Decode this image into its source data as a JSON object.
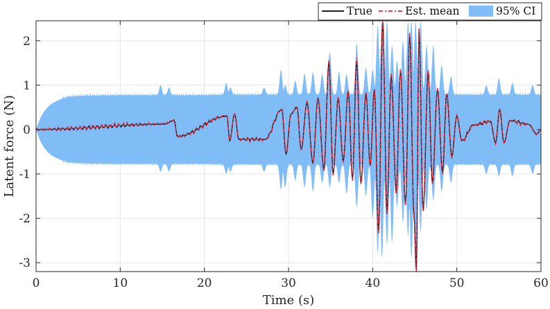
{
  "chart_data": {
    "type": "line",
    "title": "",
    "xlabel": "Time (s)",
    "ylabel": "Latent force (N)",
    "xlim": [
      0,
      60
    ],
    "ylim": [
      -3.2,
      2.45
    ],
    "x_ticks": [
      0,
      10,
      20,
      30,
      40,
      50,
      60
    ],
    "y_ticks": [
      -3,
      -2,
      -1,
      0,
      1,
      2
    ],
    "x_tick_labels": [
      "0",
      "10",
      "20",
      "30",
      "40",
      "50",
      "60"
    ],
    "y_tick_labels": [
      "-3",
      "-2",
      "-1",
      "0",
      "1",
      "2"
    ],
    "grid": true,
    "legend_position": "top-right",
    "series": [
      {
        "name": "True",
        "style": "solid",
        "color": "#000000"
      },
      {
        "name": "Est. mean",
        "style": "dash-dot",
        "color": "#e8202a"
      },
      {
        "name": "95% CI",
        "style": "fill",
        "color": "#80bdf7"
      }
    ],
    "ci_envelope": {
      "x": [
        0,
        0.5,
        1,
        1.5,
        2,
        3,
        4,
        6,
        10,
        14,
        20,
        22,
        24,
        28,
        30,
        34,
        38,
        40,
        42,
        46,
        50,
        54,
        58,
        60
      ],
      "half_width": [
        0.0,
        0.26,
        0.42,
        0.53,
        0.6,
        0.69,
        0.74,
        0.76,
        0.77,
        0.77,
        0.77,
        0.78,
        0.78,
        0.78,
        0.78,
        0.78,
        0.78,
        0.78,
        0.78,
        0.78,
        0.78,
        0.78,
        0.78,
        0.78
      ],
      "spikes": [
        {
          "t": 14.8,
          "up": 1.0,
          "down": -0.95
        },
        {
          "t": 15.8,
          "up": 0.95,
          "down": -0.95
        },
        {
          "t": 22.6,
          "up": 1.05,
          "down": -1.0
        },
        {
          "t": 23.1,
          "up": 0.95,
          "down": -0.95
        },
        {
          "t": 27.1,
          "up": 0.95,
          "down": -0.95
        },
        {
          "t": 29.1,
          "up": 1.35,
          "down": -1.35
        },
        {
          "t": 29.6,
          "up": 1.0,
          "down": -1.3
        },
        {
          "t": 30.8,
          "up": 1.1,
          "down": -1.15
        },
        {
          "t": 31.9,
          "up": 1.25,
          "down": -1.3
        },
        {
          "t": 32.9,
          "up": 1.3,
          "down": -1.4
        },
        {
          "t": 34.0,
          "up": 1.25,
          "down": -1.2
        },
        {
          "t": 34.9,
          "up": 1.75,
          "down": -1.3
        },
        {
          "t": 36.0,
          "up": 1.3,
          "down": -1.2
        },
        {
          "t": 36.9,
          "up": 1.25,
          "down": -1.45
        },
        {
          "t": 38.1,
          "up": 1.95,
          "down": -1.75
        },
        {
          "t": 39.2,
          "up": 1.4,
          "down": -1.5
        },
        {
          "t": 40.0,
          "up": 1.35,
          "down": -2.0
        },
        {
          "t": 40.6,
          "up": 2.35,
          "down": -2.8
        },
        {
          "t": 41.1,
          "up": 2.45,
          "down": -2.9
        },
        {
          "t": 41.7,
          "up": 2.45,
          "down": -2.6
        },
        {
          "t": 42.3,
          "up": 1.9,
          "down": -2.55
        },
        {
          "t": 42.9,
          "up": 1.55,
          "down": -1.75
        },
        {
          "t": 43.6,
          "up": 2.0,
          "down": -2.1
        },
        {
          "t": 44.2,
          "up": 2.45,
          "down": -2.4
        },
        {
          "t": 44.6,
          "up": 2.45,
          "down": -2.9
        },
        {
          "t": 45.1,
          "up": 2.45,
          "down": -3.2
        },
        {
          "t": 45.7,
          "up": 2.45,
          "down": -2.3
        },
        {
          "t": 46.4,
          "up": 1.9,
          "down": -1.8
        },
        {
          "t": 47.2,
          "up": 1.9,
          "down": -1.6
        },
        {
          "t": 48.2,
          "up": 1.45,
          "down": -1.4
        },
        {
          "t": 49.3,
          "up": 1.2,
          "down": -1.2
        },
        {
          "t": 53.5,
          "up": 1.0,
          "down": -1.0
        },
        {
          "t": 55.0,
          "up": 1.15,
          "down": -1.05
        },
        {
          "t": 56.6,
          "up": 1.05,
          "down": -1.05
        },
        {
          "t": 59.0,
          "up": 1.0,
          "down": -1.0
        }
      ]
    },
    "signal_peaks": [
      {
        "t": 15.2,
        "v": 0.12
      },
      {
        "t": 16.4,
        "v": 0.2
      },
      {
        "t": 16.8,
        "v": -0.15
      },
      {
        "t": 22.7,
        "v": 0.3
      },
      {
        "t": 23.0,
        "v": -0.25
      },
      {
        "t": 23.6,
        "v": 0.35
      },
      {
        "t": 24.1,
        "v": -0.22
      },
      {
        "t": 27.2,
        "v": -0.22
      },
      {
        "t": 29.2,
        "v": 0.45
      },
      {
        "t": 29.7,
        "v": -0.55
      },
      {
        "t": 30.3,
        "v": 0.35
      },
      {
        "t": 31.0,
        "v": 0.5
      },
      {
        "t": 31.5,
        "v": -0.45
      },
      {
        "t": 32.2,
        "v": 0.6
      },
      {
        "t": 32.9,
        "v": -0.75
      },
      {
        "t": 33.5,
        "v": 0.7
      },
      {
        "t": 34.2,
        "v": -0.9
      },
      {
        "t": 34.8,
        "v": 1.5
      },
      {
        "t": 35.3,
        "v": -1.0
      },
      {
        "t": 35.9,
        "v": 0.7
      },
      {
        "t": 36.5,
        "v": -0.7
      },
      {
        "t": 37.1,
        "v": 0.85
      },
      {
        "t": 37.6,
        "v": -1.1
      },
      {
        "t": 38.1,
        "v": 1.55
      },
      {
        "t": 38.6,
        "v": -1.2
      },
      {
        "t": 39.2,
        "v": 0.8
      },
      {
        "t": 39.7,
        "v": -0.8
      },
      {
        "t": 40.2,
        "v": 0.9
      },
      {
        "t": 40.7,
        "v": -2.3
      },
      {
        "t": 41.2,
        "v": 2.4
      },
      {
        "t": 41.7,
        "v": -1.85
      },
      {
        "t": 42.2,
        "v": 1.2
      },
      {
        "t": 42.8,
        "v": -1.4
      },
      {
        "t": 43.3,
        "v": 1.3
      },
      {
        "t": 43.9,
        "v": -1.65
      },
      {
        "t": 44.4,
        "v": 2.1
      },
      {
        "t": 44.9,
        "v": -1.9
      },
      {
        "t": 45.2,
        "v": -3.15
      },
      {
        "t": 45.5,
        "v": 2.2
      },
      {
        "t": 46.0,
        "v": -1.8
      },
      {
        "t": 46.6,
        "v": 1.3
      },
      {
        "t": 47.1,
        "v": -1.2
      },
      {
        "t": 47.7,
        "v": 0.9
      },
      {
        "t": 48.3,
        "v": -0.95
      },
      {
        "t": 48.8,
        "v": 0.8
      },
      {
        "t": 49.4,
        "v": -0.6
      },
      {
        "t": 50.0,
        "v": 0.3
      },
      {
        "t": 50.6,
        "v": -0.25
      },
      {
        "t": 52.0,
        "v": 0.1
      },
      {
        "t": 54.0,
        "v": 0.18
      },
      {
        "t": 54.6,
        "v": -0.3
      },
      {
        "t": 55.1,
        "v": 0.45
      },
      {
        "t": 55.6,
        "v": -0.3
      },
      {
        "t": 56.3,
        "v": 0.2
      },
      {
        "t": 58.5,
        "v": 0.12
      },
      {
        "t": 59.5,
        "v": -0.1
      }
    ]
  }
}
